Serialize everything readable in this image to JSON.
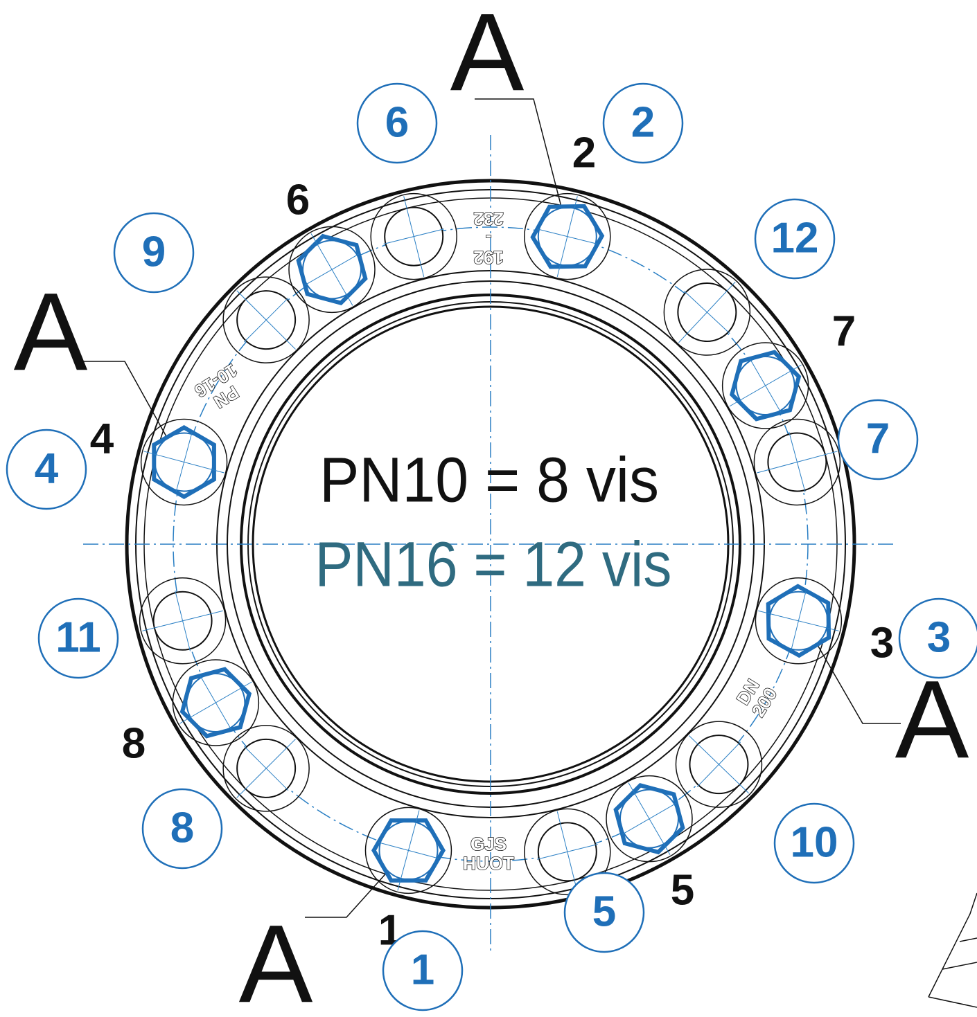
{
  "section_marks": [
    "A",
    "A",
    "A",
    "A"
  ],
  "bolt_numbers": [
    "1",
    "2",
    "3",
    "4",
    "5",
    "6",
    "7",
    "8"
  ],
  "circled_numbers": [
    "1",
    "2",
    "3",
    "4",
    "5",
    "6",
    "7",
    "8",
    "9",
    "10",
    "11",
    "12"
  ],
  "center_text": {
    "pn10": "PN10 = 8 vis",
    "pn16": "PN16 = 12 vis"
  },
  "casting_marks": {
    "range": [
      "192",
      "-",
      "232"
    ],
    "pressure": [
      "PN",
      "10-16"
    ],
    "size": [
      "DN",
      "200"
    ],
    "maker": [
      "GJS",
      "HUOT"
    ]
  }
}
